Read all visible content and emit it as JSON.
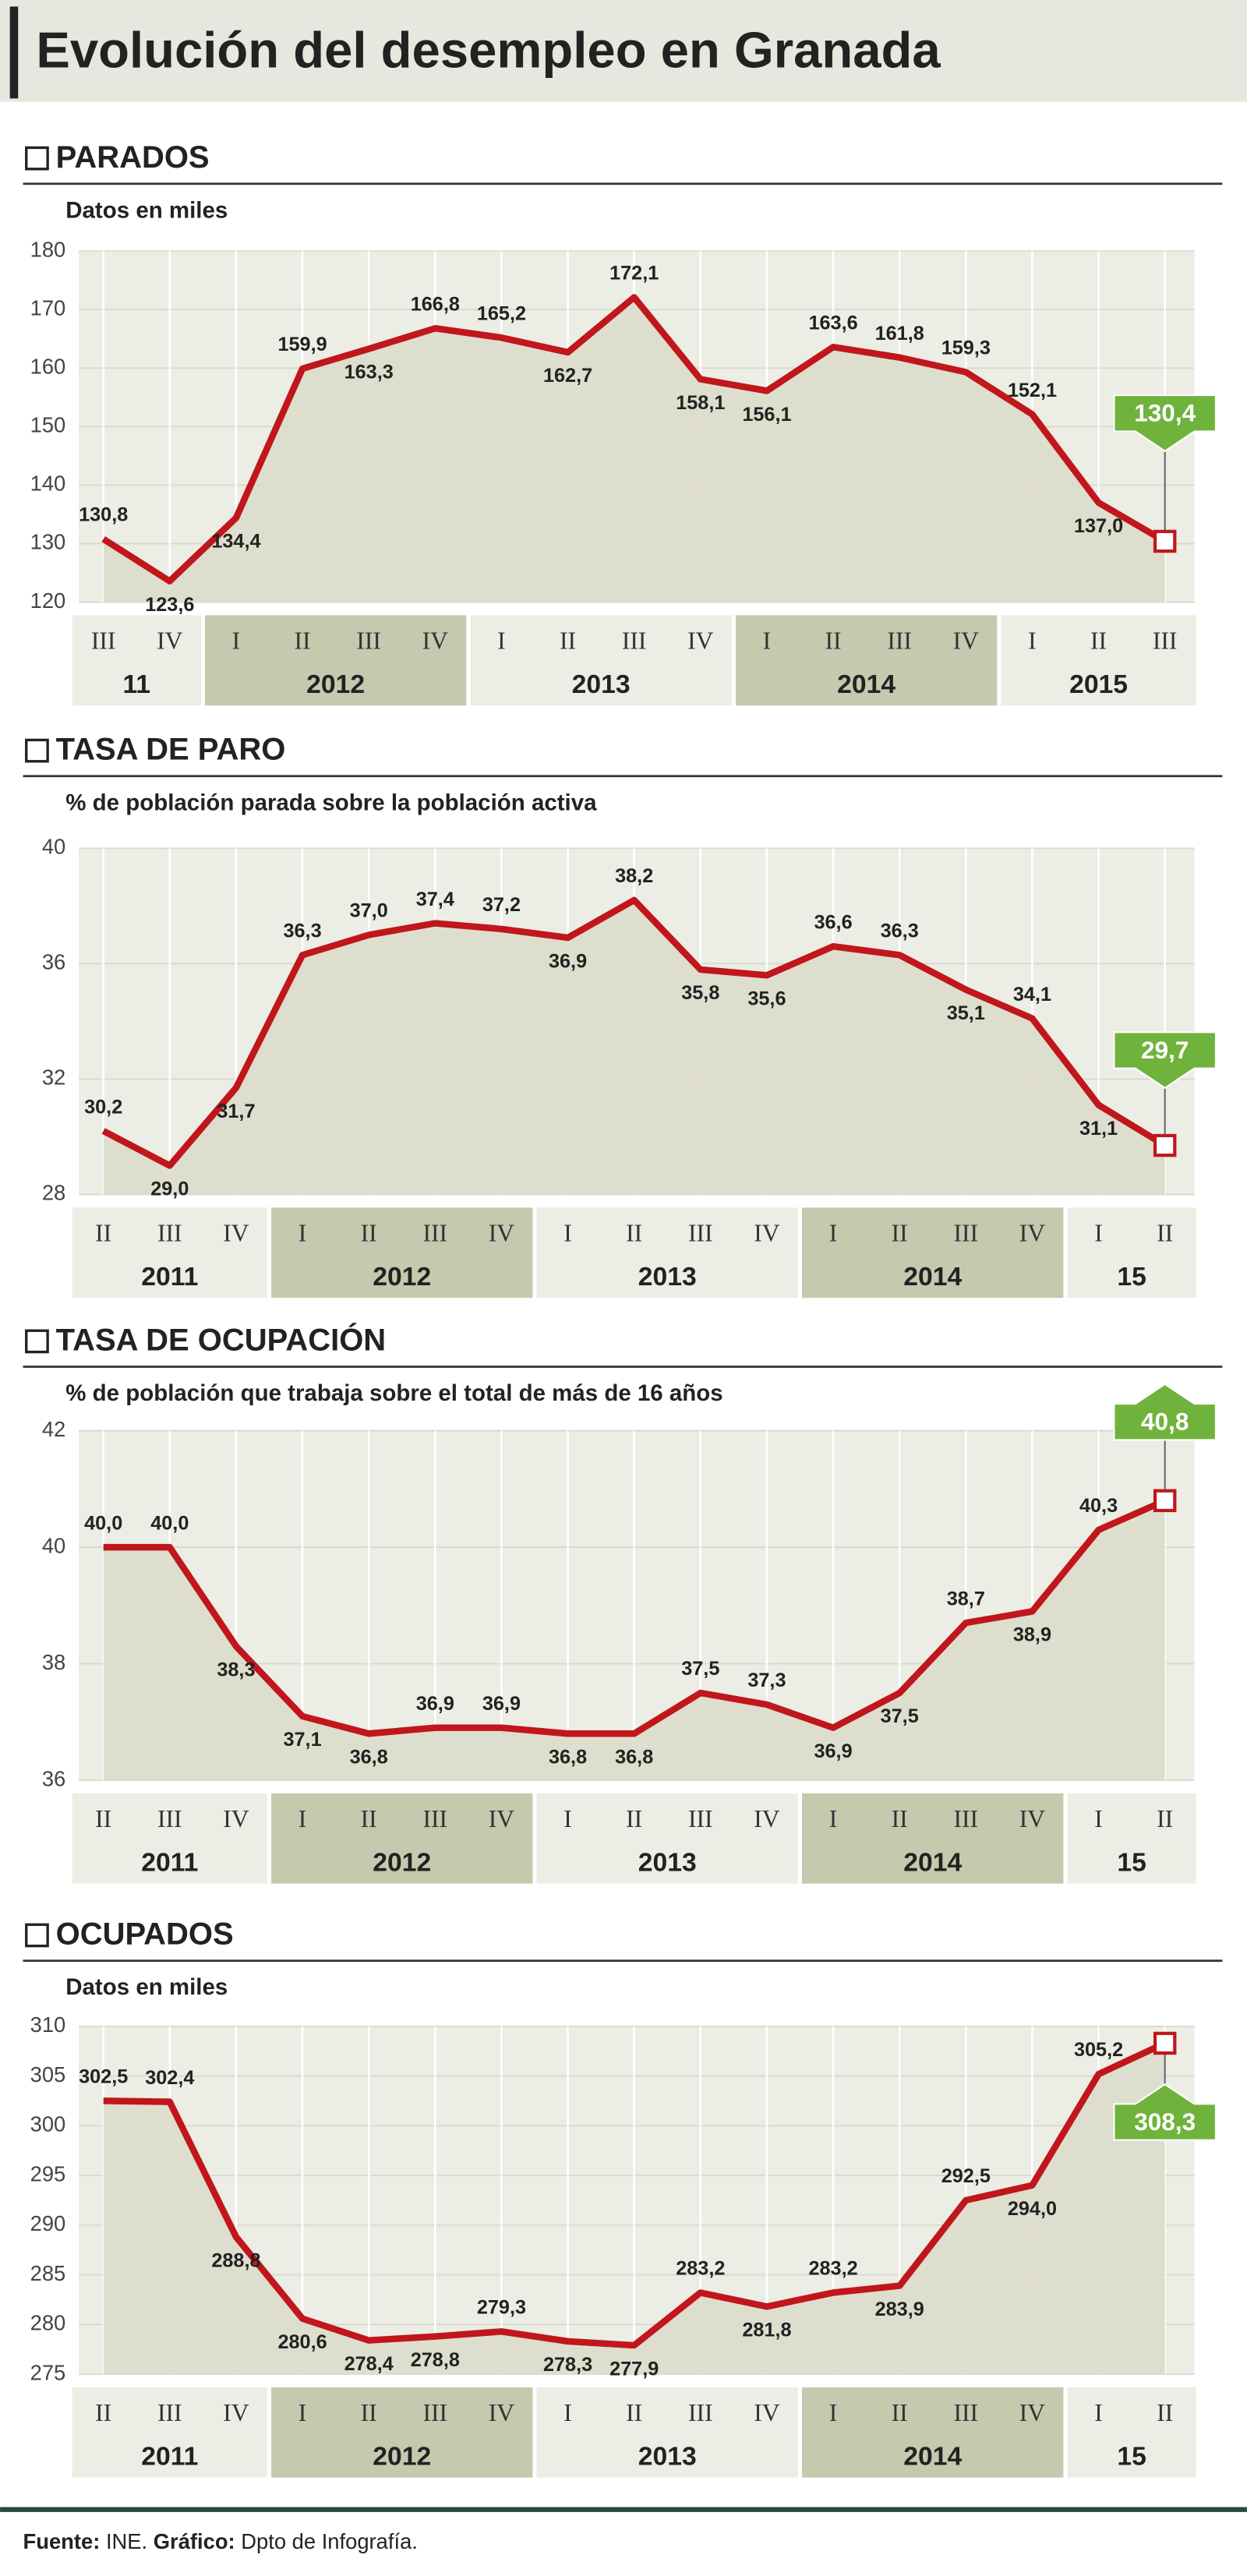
{
  "header": {
    "title": "Evolución del desempleo en Granada"
  },
  "footer": {
    "source_label": "Fuente:",
    "source": "INE.",
    "graphic_label": "Gráfico:",
    "graphic": "Dpto de Infografía."
  },
  "chart_data": [
    {
      "type": "line",
      "title": "PARADOS",
      "subtitle": "Datos en miles",
      "color": "#c0161c",
      "groups": [
        {
          "label": "11",
          "quarters": [
            "III",
            "IV"
          ],
          "shaded": false
        },
        {
          "label": "2012",
          "quarters": [
            "I",
            "II",
            "III",
            "IV"
          ],
          "shaded": true
        },
        {
          "label": "2013",
          "quarters": [
            "I",
            "II",
            "III",
            "IV"
          ],
          "shaded": false
        },
        {
          "label": "2014",
          "quarters": [
            "I",
            "II",
            "III",
            "IV"
          ],
          "shaded": true
        },
        {
          "label": "2015",
          "quarters": [
            "I",
            "II",
            "III"
          ],
          "shaded": false
        }
      ],
      "values": [
        130.8,
        123.6,
        134.4,
        159.9,
        163.3,
        166.8,
        165.2,
        162.7,
        172.1,
        158.1,
        156.1,
        163.6,
        161.8,
        159.3,
        152.1,
        137.0,
        130.4
      ],
      "value_labels": [
        "130,8",
        "123,6",
        "134,4",
        "159,9",
        "163,3",
        "166,8",
        "165,2",
        "162,7",
        "172,1",
        "158,1",
        "156,1",
        "163,6",
        "161,8",
        "159,3",
        "152,1",
        "137,0",
        "130,4"
      ],
      "ylim": [
        120,
        180
      ],
      "yticks": [
        120,
        130,
        140,
        150,
        160,
        170,
        180
      ],
      "highlight_arrow": "down"
    },
    {
      "type": "line",
      "title": "TASA DE PARO",
      "subtitle": "% de población parada sobre la población activa",
      "color": "#c0161c",
      "groups": [
        {
          "label": "2011",
          "quarters": [
            "II",
            "III",
            "IV"
          ],
          "shaded": false
        },
        {
          "label": "2012",
          "quarters": [
            "I",
            "II",
            "III",
            "IV"
          ],
          "shaded": true
        },
        {
          "label": "2013",
          "quarters": [
            "I",
            "II",
            "III",
            "IV"
          ],
          "shaded": false
        },
        {
          "label": "2014",
          "quarters": [
            "I",
            "II",
            "III",
            "IV"
          ],
          "shaded": true
        },
        {
          "label": "15",
          "quarters": [
            "I",
            "II"
          ],
          "shaded": false
        }
      ],
      "values": [
        30.2,
        29.0,
        31.7,
        36.3,
        37.0,
        37.4,
        37.2,
        36.9,
        38.2,
        35.8,
        35.6,
        36.6,
        36.3,
        35.1,
        34.1,
        31.1,
        29.7
      ],
      "value_labels": [
        "30,2",
        "29,0",
        "31,7",
        "36,3",
        "37,0",
        "37,4",
        "37,2",
        "36,9",
        "38,2",
        "35,8",
        "35,6",
        "36,6",
        "36,3",
        "35,1",
        "34,1",
        "31,1",
        "29,7"
      ],
      "ylim": [
        28,
        40
      ],
      "yticks": [
        28,
        32,
        36,
        40
      ],
      "highlight_arrow": "down"
    },
    {
      "type": "line",
      "title": "TASA DE OCUPACIÓN",
      "subtitle": "% de población que trabaja sobre el total de más de 16 años",
      "color": "#c0161c",
      "groups": [
        {
          "label": "2011",
          "quarters": [
            "II",
            "III",
            "IV"
          ],
          "shaded": false
        },
        {
          "label": "2012",
          "quarters": [
            "I",
            "II",
            "III",
            "IV"
          ],
          "shaded": true
        },
        {
          "label": "2013",
          "quarters": [
            "I",
            "II",
            "III",
            "IV"
          ],
          "shaded": false
        },
        {
          "label": "2014",
          "quarters": [
            "I",
            "II",
            "III",
            "IV"
          ],
          "shaded": true
        },
        {
          "label": "15",
          "quarters": [
            "I",
            "II"
          ],
          "shaded": false
        }
      ],
      "values": [
        40.0,
        40.0,
        38.3,
        37.1,
        36.8,
        36.9,
        36.9,
        36.8,
        36.8,
        37.5,
        37.3,
        36.9,
        37.5,
        38.7,
        38.9,
        40.3,
        40.8
      ],
      "value_labels": [
        "40,0",
        "40,0",
        "38,3",
        "37,1",
        "36,8",
        "36,9",
        "36,9",
        "36,8",
        "36,8",
        "37,5",
        "37,3",
        "36,9",
        "37,5",
        "38,7",
        "38,9",
        "40,3",
        "40,8"
      ],
      "ylim": [
        36,
        42
      ],
      "yticks": [
        36,
        38,
        40,
        42
      ],
      "highlight_arrow": "up"
    },
    {
      "type": "line",
      "title": "OCUPADOS",
      "subtitle": "Datos en miles",
      "color": "#c0161c",
      "groups": [
        {
          "label": "2011",
          "quarters": [
            "II",
            "III",
            "IV"
          ],
          "shaded": false
        },
        {
          "label": "2012",
          "quarters": [
            "I",
            "II",
            "III",
            "IV"
          ],
          "shaded": true
        },
        {
          "label": "2013",
          "quarters": [
            "I",
            "II",
            "III",
            "IV"
          ],
          "shaded": false
        },
        {
          "label": "2014",
          "quarters": [
            "I",
            "II",
            "III",
            "IV"
          ],
          "shaded": true
        },
        {
          "label": "15",
          "quarters": [
            "I",
            "II"
          ],
          "shaded": false
        }
      ],
      "values": [
        302.5,
        302.4,
        288.8,
        280.6,
        278.4,
        278.8,
        279.3,
        278.3,
        277.9,
        283.2,
        281.8,
        283.2,
        283.9,
        292.5,
        294.0,
        305.2,
        308.3
      ],
      "value_labels": [
        "302,5",
        "302,4",
        "288,8",
        "280,6",
        "278,4",
        "278,8",
        "279,3",
        "278,3",
        "277,9",
        "283,2",
        "281,8",
        "283,2",
        "283,9",
        "292,5",
        "294,0",
        "305,2",
        "308,3"
      ],
      "ylim": [
        275,
        310
      ],
      "yticks": [
        275,
        280,
        285,
        290,
        295,
        300,
        305,
        310
      ],
      "highlight_arrow": "up"
    }
  ]
}
